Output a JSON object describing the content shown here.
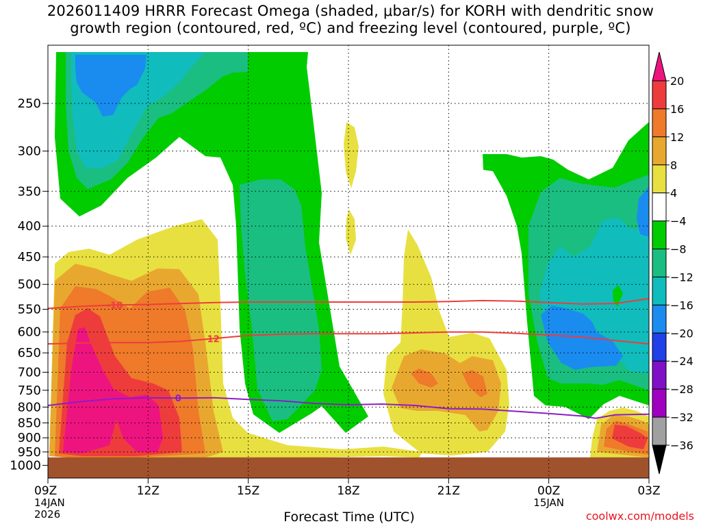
{
  "title": {
    "line1": "2026011409 HRRR Forecast Omega (shaded, μbar/s) for KORH with dendritic snow",
    "line2": "growth region (contoured, red, ºC) and freezing level (contoured, purple, ºC)"
  },
  "watermark": "coolwx.com/models",
  "chart_data": {
    "type": "heatmap",
    "xlabel": "Forecast Time (UTC)",
    "ylabel": "",
    "x_range": [
      0,
      18
    ],
    "x_ticks": [
      {
        "x": 0,
        "label": "09Z",
        "sub": [
          "14JAN",
          "2026"
        ]
      },
      {
        "x": 3,
        "label": "12Z",
        "sub": []
      },
      {
        "x": 6,
        "label": "15Z",
        "sub": []
      },
      {
        "x": 9,
        "label": "18Z",
        "sub": []
      },
      {
        "x": 12,
        "label": "21Z",
        "sub": []
      },
      {
        "x": 15,
        "label": "00Z",
        "sub": [
          "15JAN"
        ]
      },
      {
        "x": 18,
        "label": "03Z",
        "sub": []
      }
    ],
    "y_ticks": [
      250,
      300,
      350,
      400,
      450,
      500,
      550,
      600,
      650,
      700,
      750,
      800,
      850,
      900,
      950,
      1000
    ],
    "colorbar": {
      "labels": [
        "20",
        "16",
        "12",
        "8",
        "4",
        "−4",
        "−8",
        "−12",
        "−16",
        "−20",
        "−24",
        "−28",
        "−32",
        "−36"
      ],
      "colors": [
        "#ee1480",
        "#ee3c3c",
        "#ee7a2a",
        "#e8a830",
        "#e8e040",
        "#ffffff",
        "#00cc00",
        "#1abe80",
        "#10bcbc",
        "#1a8cf0",
        "#2040e8",
        "#8010c8",
        "#a000c0",
        "#a0a0a0",
        "#000000"
      ]
    },
    "ground_color": "#a0522d",
    "ground_pressure": 970,
    "series": [
      {
        "name": "dendritic snow growth region",
        "color": "#ee3c3c",
        "contours": [
          {
            "label": "-18",
            "label_x": 2.0,
            "points": [
              [
                0,
                548
              ],
              [
                1,
                544
              ],
              [
                2,
                541
              ],
              [
                3,
                540
              ],
              [
                4,
                538
              ],
              [
                5,
                536
              ],
              [
                6,
                535
              ],
              [
                7,
                535
              ],
              [
                8,
                535
              ],
              [
                9,
                535
              ],
              [
                10,
                535
              ],
              [
                11,
                535
              ],
              [
                12,
                534
              ],
              [
                13,
                532
              ],
              [
                14,
                533
              ],
              [
                15,
                536
              ],
              [
                16,
                539
              ],
              [
                17,
                538
              ],
              [
                18,
                528
              ]
            ]
          },
          {
            "label": "-12",
            "label_x": 4.9,
            "points": [
              [
                0,
                628
              ],
              [
                1,
                626
              ],
              [
                2,
                625
              ],
              [
                3,
                625
              ],
              [
                4,
                622
              ],
              [
                5,
                615
              ],
              [
                6,
                608
              ],
              [
                7,
                605
              ],
              [
                8,
                604
              ],
              [
                9,
                604
              ],
              [
                10,
                604
              ],
              [
                11,
                602
              ],
              [
                12,
                600
              ],
              [
                13,
                600
              ],
              [
                14,
                603
              ],
              [
                15,
                607
              ],
              [
                16,
                612
              ],
              [
                17,
                620
              ],
              [
                18,
                628
              ]
            ]
          }
        ]
      },
      {
        "name": "freezing level",
        "color": "#8c1cc8",
        "contours": [
          {
            "label": "0",
            "label_x": 3.9,
            "points": [
              [
                0,
                795
              ],
              [
                1,
                783
              ],
              [
                2,
                775
              ],
              [
                3,
                772
              ],
              [
                4,
                773
              ],
              [
                5,
                772
              ],
              [
                6,
                777
              ],
              [
                7,
                781
              ],
              [
                8,
                789
              ],
              [
                9,
                793
              ],
              [
                10,
                791
              ],
              [
                11,
                795
              ],
              [
                12,
                805
              ],
              [
                13,
                806
              ],
              [
                14,
                813
              ],
              [
                15,
                820
              ],
              [
                16,
                828
              ],
              [
                16.4,
                835
              ],
              [
                17,
                824
              ],
              [
                18,
                822
              ]
            ]
          }
        ]
      }
    ]
  }
}
